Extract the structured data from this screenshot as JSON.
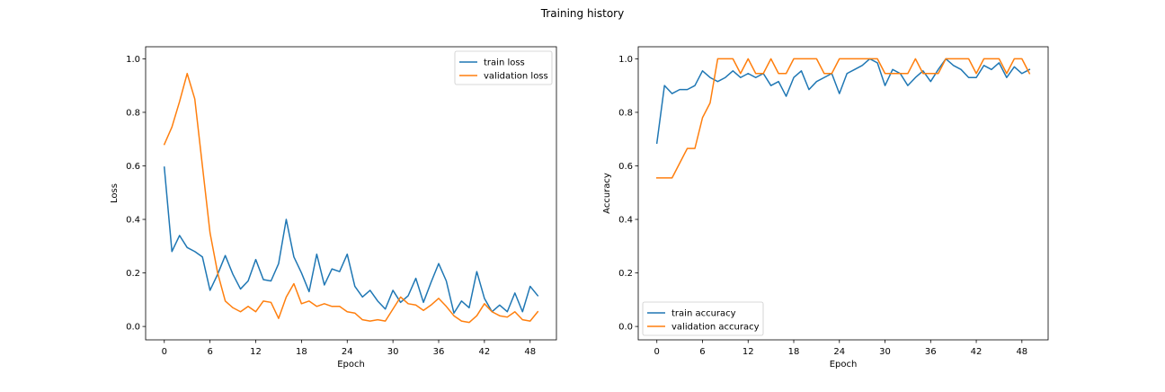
{
  "figure": {
    "title": "Training history"
  },
  "colors": {
    "blue": "#1f77b4",
    "orange": "#ff7f0e",
    "axis": "#000000"
  },
  "chart_data": [
    {
      "type": "line",
      "xlabel": "Epoch",
      "ylabel": "Loss",
      "xlim": [
        -2.45,
        51.45
      ],
      "ylim": [
        -0.05,
        1.045
      ],
      "xticks": [
        0,
        6,
        12,
        18,
        24,
        30,
        36,
        42,
        48
      ],
      "xtick_labels": [
        "0",
        "6",
        "12",
        "18",
        "24",
        "30",
        "36",
        "42",
        "48"
      ],
      "yticks": [
        0.0,
        0.2,
        0.4,
        0.6,
        0.8,
        1.0
      ],
      "ytick_labels": [
        "0.0",
        "0.2",
        "0.4",
        "0.6",
        "0.8",
        "1.0"
      ],
      "legend_position": "top-right",
      "x": [
        0,
        1,
        2,
        3,
        4,
        5,
        6,
        7,
        8,
        9,
        10,
        11,
        12,
        13,
        14,
        15,
        16,
        17,
        18,
        19,
        20,
        21,
        22,
        23,
        24,
        25,
        26,
        27,
        28,
        29,
        30,
        31,
        32,
        33,
        34,
        35,
        36,
        37,
        38,
        39,
        40,
        41,
        42,
        43,
        44,
        45,
        46,
        47,
        48,
        49
      ],
      "series": [
        {
          "name": "train loss",
          "color": "#1f77b4",
          "values": [
            0.595,
            0.28,
            0.34,
            0.295,
            0.28,
            0.26,
            0.135,
            0.195,
            0.265,
            0.195,
            0.14,
            0.17,
            0.25,
            0.175,
            0.17,
            0.235,
            0.4,
            0.26,
            0.2,
            0.13,
            0.27,
            0.155,
            0.215,
            0.205,
            0.27,
            0.15,
            0.11,
            0.135,
            0.095,
            0.065,
            0.135,
            0.09,
            0.115,
            0.18,
            0.09,
            0.165,
            0.235,
            0.17,
            0.05,
            0.095,
            0.07,
            0.205,
            0.105,
            0.055,
            0.08,
            0.055,
            0.125,
            0.055,
            0.15,
            0.115
          ]
        },
        {
          "name": "validation loss",
          "color": "#ff7f0e",
          "values": [
            0.68,
            0.745,
            0.84,
            0.945,
            0.85,
            0.6,
            0.35,
            0.2,
            0.095,
            0.07,
            0.055,
            0.075,
            0.055,
            0.095,
            0.09,
            0.03,
            0.11,
            0.16,
            0.085,
            0.095,
            0.075,
            0.085,
            0.075,
            0.075,
            0.055,
            0.05,
            0.025,
            0.02,
            0.025,
            0.02,
            0.065,
            0.11,
            0.085,
            0.08,
            0.06,
            0.08,
            0.105,
            0.075,
            0.04,
            0.02,
            0.015,
            0.04,
            0.085,
            0.055,
            0.04,
            0.035,
            0.055,
            0.025,
            0.02,
            0.055
          ]
        }
      ]
    },
    {
      "type": "line",
      "xlabel": "Epoch",
      "ylabel": "Accuracy",
      "xlim": [
        -2.45,
        51.45
      ],
      "ylim": [
        -0.05,
        1.045
      ],
      "xticks": [
        0,
        6,
        12,
        18,
        24,
        30,
        36,
        42,
        48
      ],
      "xtick_labels": [
        "0",
        "6",
        "12",
        "18",
        "24",
        "30",
        "36",
        "42",
        "48"
      ],
      "yticks": [
        0.0,
        0.2,
        0.4,
        0.6,
        0.8,
        1.0
      ],
      "ytick_labels": [
        "0.0",
        "0.2",
        "0.4",
        "0.6",
        "0.8",
        "1.0"
      ],
      "legend_position": "bottom-left",
      "x": [
        0,
        1,
        2,
        3,
        4,
        5,
        6,
        7,
        8,
        9,
        10,
        11,
        12,
        13,
        14,
        15,
        16,
        17,
        18,
        19,
        20,
        21,
        22,
        23,
        24,
        25,
        26,
        27,
        28,
        29,
        30,
        31,
        32,
        33,
        34,
        35,
        36,
        37,
        38,
        39,
        40,
        41,
        42,
        43,
        44,
        45,
        46,
        47,
        48,
        49
      ],
      "series": [
        {
          "name": "train accuracy",
          "color": "#1f77b4",
          "values": [
            0.685,
            0.9,
            0.87,
            0.885,
            0.885,
            0.9,
            0.955,
            0.93,
            0.915,
            0.93,
            0.955,
            0.93,
            0.945,
            0.93,
            0.945,
            0.9,
            0.915,
            0.86,
            0.93,
            0.955,
            0.885,
            0.915,
            0.93,
            0.945,
            0.87,
            0.945,
            0.96,
            0.975,
            1.0,
            0.985,
            0.9,
            0.96,
            0.945,
            0.9,
            0.93,
            0.955,
            0.915,
            0.96,
            1.0,
            0.975,
            0.96,
            0.93,
            0.93,
            0.975,
            0.96,
            0.985,
            0.93,
            0.97,
            0.945,
            0.96
          ]
        },
        {
          "name": "validation accuracy",
          "color": "#ff7f0e",
          "values": [
            0.555,
            0.555,
            0.555,
            0.61,
            0.665,
            0.665,
            0.78,
            0.835,
            1.0,
            1.0,
            1.0,
            0.945,
            1.0,
            0.945,
            0.945,
            1.0,
            0.945,
            0.945,
            1.0,
            1.0,
            1.0,
            1.0,
            0.945,
            0.945,
            1.0,
            1.0,
            1.0,
            1.0,
            1.0,
            1.0,
            0.945,
            0.945,
            0.945,
            0.945,
            1.0,
            0.945,
            0.945,
            0.945,
            1.0,
            1.0,
            1.0,
            1.0,
            0.945,
            1.0,
            1.0,
            1.0,
            0.945,
            1.0,
            1.0,
            0.945
          ]
        }
      ]
    }
  ]
}
